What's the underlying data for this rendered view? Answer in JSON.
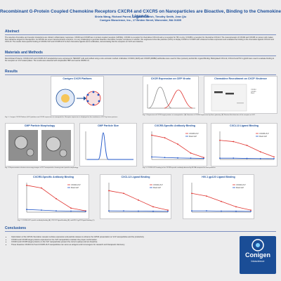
{
  "header": {
    "title": "Recombinant G-Protein Coupled Chemokine Receptors CXCR4 and CXCR5 on Nanoparticles are Bioactive, Binding to the Chemokine Ligands",
    "authors": "Shiela Wang, Richard Parent, Christofer Welsh, Timothy Smith, Jean Qiu",
    "affiliation": "Conigen Bioscience, Inc., 17 Briden Street, Worcester, MA 01605"
  },
  "abstract": {
    "heading": "Abstract",
    "text": "The selective chemokine and receptor interactions are critical in inflammatory responses. CXCR4 and CXCR5 are G protein coupled receptors (GPCRs). CXCR4 is a receptor for chemokine CXCL12 and a co-receptor for HIV-1 entry. CXCR5 is a receptor for chemokine CXCL13. The overexpression of CXCR4 and CXCR5 on cancer cells makes them attractive targets for therapeutics. As GPCRs are seven transmembrane receptors, it is very challenging to generate bioactive chemokine receptor complexes in solution. We engineered virus-like particles (VLPs) to display CXCR4 or CXCR5 with enhanced surface expression and evaluated the binding to the chemokine ligands CXCL12 and CXCL13. The results show specific binding of CXCR4-VLP and CXCR5-VLP to their chemokine ligands and to antibodies, demonstrating that the receptors on VLPs are bioactive."
  },
  "methods": {
    "heading": "Materials and Methods",
    "text": "Recombinant Proteins: CXCR4-VLP and CXCR5-VLP nanoparticles were expressed in HEK293T cells and purified using a size exclusion method. Antibodies: CXCR4 (12G5) and CXCR5 (RF8B2) antibodies were used for flow cytometry and ELISA. Ligand Binding: Biotinylated CXCL12, CXCL13 and HIV-1 gp120 were used to evaluate binding to the receptors on VLP coated plates. The results were detected with streptavidin-HRP and read at OD450 nm."
  },
  "results": {
    "heading": "Results",
    "fig1": {
      "title": "Conigen CXCR Platform",
      "caption": "Fig. 1. Conigen CXCR Platform (VLP) platform and CXCR expression on nanoparticles. Receptor expression is displayed on the membrane of VLP by fusion partners."
    },
    "fig2": {
      "title": "CXCR Expression on CEP Viruria",
      "caption": "Fig. 2. Expression of CXCR target proteins on nanoparticles. (A) Detection of CXCR4 expression by flow cytometry. (B) Western blot detection of the receptor on VLP."
    },
    "fig2b": {
      "title": "Chemokine Recruitment on CXCP Virulence",
      "lane_labels": [
        "CXCR4",
        "CXCR5",
        "Mock"
      ]
    },
    "fig3": {
      "title": "CMP Particle Morphology",
      "caption": "Fig. 3. Representative electron microscopy images of VLP nanoparticles showing intact particle morphology."
    },
    "fig4": {
      "title": "CMP Particle Size",
      "caption": "Fig. 4. Nanoparticle tracking analysis of particle size distribution."
    },
    "fig5": {
      "title": "CXCR5-Specific Antibody Binding",
      "caption": "Fig. 5. CXCR5-VLP binding to the CXCR5-specific antibody detected by ELISA compared to mock particles."
    },
    "fig6": {
      "title": "CXCL13 Ligand Binding",
      "caption": "Fig. 6. CXCL13 chemokine ligand binding to CXCR5-VLP versus mock VLP."
    },
    "fig7": {
      "title": "CXCR5-Specific Antibody Binding",
      "caption": "Fig. 7. CXCR4-VLP specific antibody binding (A), CXCL12 ligand binding (B), and HIV-1 gp120 ligand binding (C)."
    },
    "fig8": {
      "title": "CXCL12 Ligand Binding"
    },
    "fig9": {
      "title": "HIV-1 gp120 Ligand Binding"
    }
  },
  "conclusions": {
    "heading": "Conclusions",
    "items": [
      "Optimization of the GPCR chemokine receptor surface expression and particle release to enhance the GPCR presentation on VLP nanoparticles and the productivity.",
      "CXCR4 and CXCR5 target proteins expressed on the VLP nanoparticles maintain the proper conformation.",
      "CXCR4 and CXCR5 target proteins on the VLP nanoparticles present the correct epitope and are bioactive.",
      "These bioactive CXCR4-VLP and CXCR5-VLP nanoparticles can serve as antigens and immunogens for research and therapeutic discovery."
    ]
  },
  "logo": {
    "name": "Conigen",
    "sub": "bioscience"
  },
  "colors": {
    "accent": "#1d4f9a",
    "series_a": "#e0332f",
    "series_b": "#1f55c8"
  },
  "chart_data": [
    {
      "type": "line",
      "title": "CXCR5-Specific Antibody Binding",
      "series": [
        {
          "name": "CXCR5-VLP",
          "x": [
            0.1,
            1,
            10,
            100,
            1000
          ],
          "values": [
            1.9,
            1.7,
            1.2,
            0.5,
            0.15
          ]
        },
        {
          "name": "Mock-VLP",
          "x": [
            0.1,
            1,
            10,
            100,
            1000
          ],
          "values": [
            0.2,
            0.15,
            0.12,
            0.1,
            0.08
          ]
        }
      ]
    },
    {
      "type": "line",
      "title": "CXCL13 Ligand Binding",
      "series": [
        {
          "name": "CXCR5-VLP",
          "x": [
            0.1,
            1,
            10,
            100,
            1000
          ],
          "values": [
            1.5,
            1.4,
            1.1,
            0.6,
            0.2
          ]
        },
        {
          "name": "Mock-VLP",
          "x": [
            0.1,
            1,
            10,
            100,
            1000
          ],
          "values": [
            0.1,
            0.1,
            0.08,
            0.07,
            0.06
          ]
        }
      ]
    },
    {
      "type": "line",
      "title": "CXCR5-Specific Antibody Binding",
      "series": [
        {
          "name": "CXCR4-VLP",
          "x": [
            0.1,
            1,
            10,
            100,
            1000
          ],
          "values": [
            2.0,
            1.8,
            1.0,
            0.3,
            0.1
          ]
        },
        {
          "name": "Mock-VLP",
          "x": [
            0.1,
            1,
            10,
            100,
            1000
          ],
          "values": [
            0.2,
            0.15,
            0.1,
            0.08,
            0.06
          ]
        }
      ]
    },
    {
      "type": "line",
      "title": "CXCL12 Ligand Binding",
      "series": [
        {
          "name": "CXCR4-VLP",
          "x": [
            0.1,
            1,
            10,
            100,
            1000
          ],
          "values": [
            1.6,
            1.4,
            0.9,
            0.4,
            0.15
          ]
        },
        {
          "name": "Mock-VLP",
          "x": [
            0.1,
            1,
            10,
            100,
            1000
          ],
          "values": [
            0.1,
            0.09,
            0.08,
            0.07,
            0.06
          ]
        }
      ]
    },
    {
      "type": "line",
      "title": "HIV-1 gp120 Ligand Binding",
      "series": [
        {
          "name": "CXCR4-VLP",
          "x": [
            0.1,
            1,
            10,
            100,
            1000
          ],
          "values": [
            1.4,
            1.2,
            0.8,
            0.4,
            0.15
          ]
        },
        {
          "name": "Mock-VLP",
          "x": [
            0.1,
            1,
            10,
            100,
            1000
          ],
          "values": [
            0.1,
            0.1,
            0.08,
            0.07,
            0.06
          ]
        }
      ]
    }
  ]
}
